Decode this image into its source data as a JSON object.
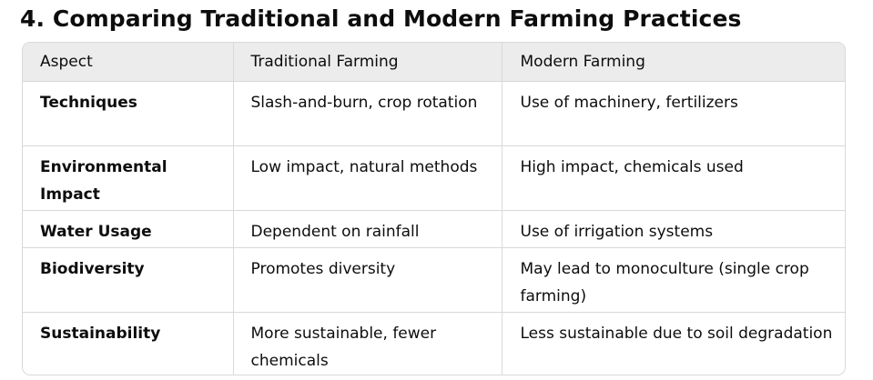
{
  "title": "4. Comparing Traditional and Modern Farming Practices",
  "table": {
    "headers": [
      "Aspect",
      "Traditional Farming",
      "Modern Farming"
    ],
    "rows": [
      [
        "Techniques",
        "Slash-and-burn, crop rotation",
        "Use of machinery, fertilizers"
      ],
      [
        "Environmental Impact",
        "Low impact, natural methods",
        "High impact, chemicals used"
      ],
      [
        "Water Usage",
        "Dependent on rainfall",
        "Use of irrigation systems"
      ],
      [
        "Biodiversity",
        "Promotes diversity",
        "May lead to monoculture (single crop farming)"
      ],
      [
        "Sustainability",
        "More sustainable, fewer chemicals",
        "Less sustainable due to soil degradation"
      ]
    ]
  }
}
